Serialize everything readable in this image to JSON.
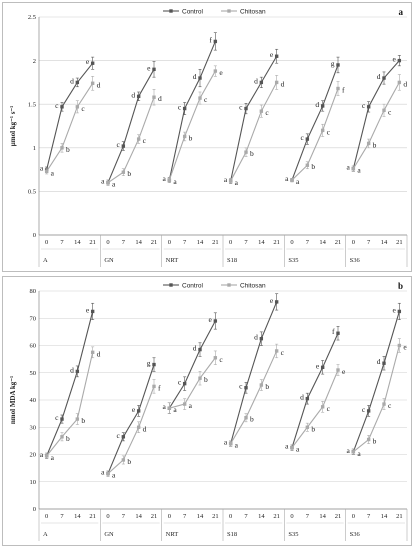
{
  "chart_data": [
    {
      "panel_label": "a",
      "type": "line",
      "ylabel": "μmol kg⁻¹ s⁻¹",
      "ylim": [
        0,
        2.5
      ],
      "yticks": [
        0,
        0.5,
        1,
        1.5,
        2,
        2.5
      ],
      "ytick_labels": [
        "0",
        "0.5",
        "1",
        "1.5",
        "2",
        "2.5"
      ],
      "groups": [
        "A",
        "GN",
        "NRT",
        "S18",
        "S35",
        "S36"
      ],
      "days": [
        "0",
        "7",
        "14",
        "21"
      ],
      "legend_position": "top-center",
      "grid": true,
      "series": [
        {
          "name": "Control",
          "color": "#555555",
          "values": [
            [
              0.75,
              1.47,
              1.75,
              1.97
            ],
            [
              0.6,
              1.02,
              1.59,
              1.9
            ],
            [
              0.63,
              1.45,
              1.8,
              2.22
            ],
            [
              0.62,
              1.45,
              1.75,
              2.05
            ],
            [
              0.63,
              1.1,
              1.48,
              1.95
            ],
            [
              0.76,
              1.47,
              1.8,
              2.0
            ]
          ],
          "errors": [
            [
              0.03,
              0.05,
              0.05,
              0.07
            ],
            [
              0.03,
              0.05,
              0.05,
              0.09
            ],
            [
              0.03,
              0.07,
              0.1,
              0.1
            ],
            [
              0.03,
              0.06,
              0.06,
              0.08
            ],
            [
              0.02,
              0.06,
              0.06,
              0.09
            ],
            [
              0.03,
              0.06,
              0.07,
              0.06
            ]
          ],
          "letters": [
            [
              "a",
              "c",
              "d",
              "e"
            ],
            [
              "a",
              "c",
              "d",
              "e"
            ],
            [
              "a",
              "c",
              "d",
              "f"
            ],
            [
              "a",
              "c",
              "d",
              "e"
            ],
            [
              "a",
              "c",
              "d",
              "g"
            ],
            [
              "a",
              "c",
              "d",
              "e"
            ]
          ]
        },
        {
          "name": "Chitosan",
          "color": "#aaaaaa",
          "values": [
            [
              0.73,
              1.0,
              1.47,
              1.74
            ],
            [
              0.6,
              0.72,
              1.1,
              1.58
            ],
            [
              0.63,
              1.13,
              1.57,
              1.88
            ],
            [
              0.62,
              0.95,
              1.42,
              1.75
            ],
            [
              0.63,
              0.8,
              1.2,
              1.68
            ],
            [
              0.76,
              1.05,
              1.43,
              1.75
            ]
          ],
          "errors": [
            [
              0.03,
              0.05,
              0.07,
              0.08
            ],
            [
              0.03,
              0.04,
              0.05,
              0.09
            ],
            [
              0.03,
              0.05,
              0.07,
              0.06
            ],
            [
              0.03,
              0.05,
              0.07,
              0.08
            ],
            [
              0.02,
              0.04,
              0.07,
              0.08
            ],
            [
              0.03,
              0.05,
              0.07,
              0.09
            ]
          ],
          "letters": [
            [
              "a",
              "b",
              "c",
              "d"
            ],
            [
              "a",
              "b",
              "c",
              "d"
            ],
            [
              "a",
              "b",
              "c",
              "e"
            ],
            [
              "a",
              "b",
              "c",
              "d"
            ],
            [
              "a",
              "b",
              "c",
              "f"
            ],
            [
              "a",
              "b",
              "c",
              "d"
            ]
          ]
        }
      ]
    },
    {
      "panel_label": "b",
      "type": "line",
      "ylabel": "nmol MDA kg⁻¹",
      "ylim": [
        0,
        80
      ],
      "yticks": [
        0,
        10,
        20,
        30,
        40,
        50,
        60,
        70,
        80
      ],
      "ytick_labels": [
        "0",
        "10",
        "20",
        "30",
        "40",
        "50",
        "60",
        "70",
        "80"
      ],
      "groups": [
        "A",
        "GN",
        "NRT",
        "S18",
        "S35",
        "S36"
      ],
      "days": [
        "0",
        "7",
        "14",
        "21"
      ],
      "legend_position": "top-center",
      "grid": true,
      "series": [
        {
          "name": "Control",
          "color": "#555555",
          "values": [
            [
              19.5,
              33,
              50.5,
              72.5
            ],
            [
              13,
              26.5,
              36,
              53
            ],
            [
              37,
              46,
              58.5,
              69
            ],
            [
              24,
              44.5,
              62.5,
              76
            ],
            [
              22.5,
              40.5,
              52,
              64.5
            ],
            [
              21,
              36,
              53.5,
              72.5
            ]
          ],
          "errors": [
            [
              1,
              1.5,
              2,
              3
            ],
            [
              1,
              1.5,
              2,
              2.5
            ],
            [
              2,
              2.5,
              2.5,
              3
            ],
            [
              1,
              2,
              2.5,
              3
            ],
            [
              1,
              2,
              2.5,
              2.5
            ],
            [
              1,
              2,
              2.5,
              3
            ]
          ],
          "letters": [
            [
              "a",
              "c",
              "d",
              "e"
            ],
            [
              "a",
              "c",
              "e",
              "g"
            ],
            [
              "a",
              "c",
              "d",
              "e"
            ],
            [
              "a",
              "c",
              "d",
              "e"
            ],
            [
              "a",
              "d",
              "e",
              "f"
            ],
            [
              "a",
              "c",
              "d",
              "e"
            ]
          ]
        },
        {
          "name": "Chitosan",
          "color": "#aaaaaa",
          "values": [
            [
              19.5,
              26.5,
              33,
              57.5
            ],
            [
              13,
              18,
              30,
              45
            ],
            [
              37,
              38.5,
              48,
              55.5
            ],
            [
              24,
              33.5,
              45.5,
              58
            ],
            [
              22.5,
              30,
              37.5,
              51
            ],
            [
              21,
              25.5,
              38.5,
              60
            ]
          ],
          "errors": [
            [
              1,
              1.5,
              2,
              2
            ],
            [
              1,
              1.5,
              2,
              2.5
            ],
            [
              2,
              2,
              2.5,
              2.5
            ],
            [
              1,
              1.5,
              2,
              2.5
            ],
            [
              1,
              1.5,
              2,
              2
            ],
            [
              1,
              1.5,
              2,
              2.5
            ]
          ],
          "letters": [
            [
              "a",
              "b",
              "b",
              "d"
            ],
            [
              "a",
              "b",
              "d",
              "f"
            ],
            [
              "a",
              "a",
              "b",
              "c"
            ],
            [
              "a",
              "b",
              "b",
              "c"
            ],
            [
              "a",
              "b",
              "c",
              "e"
            ],
            [
              "a",
              "b",
              "c",
              "e"
            ]
          ]
        }
      ]
    }
  ]
}
